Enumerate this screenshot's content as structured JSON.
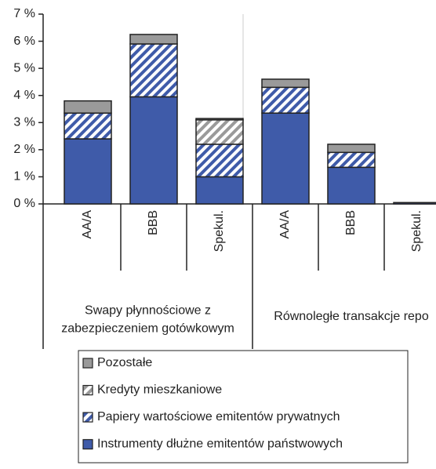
{
  "chart_data": {
    "type": "stacked_bar",
    "groups": [
      {
        "name": "Swapy płynnościowe z zabezpieczeniem gotówkowym",
        "categories": [
          "AA/A",
          "BBB",
          "Spekul."
        ]
      },
      {
        "name": "Równoległe transakcje repo",
        "categories": [
          "AA/A",
          "BBB",
          "Spekul."
        ]
      }
    ],
    "series": [
      {
        "name": "Instrumenty dłużne emitentów państwowych",
        "color": "#3f5ba9",
        "pattern": "solid",
        "values": [
          2.4,
          3.95,
          1.0,
          3.35,
          1.35,
          0.05
        ]
      },
      {
        "name": "Papiery wartościowe emitentów prywatnych",
        "color": "#3f5ba9",
        "pattern": "hatch",
        "values": [
          0.95,
          1.95,
          1.2,
          0.95,
          0.55,
          0
        ]
      },
      {
        "name": "Kredyty mieszkaniowe",
        "color": "#9a9a9a",
        "pattern": "hatch",
        "values": [
          0,
          0,
          0.9,
          0,
          0,
          0
        ]
      },
      {
        "name": "Pozostałe",
        "color": "#9a9a9a",
        "pattern": "solid",
        "values": [
          0.45,
          0.35,
          0.05,
          0.3,
          0.3,
          0
        ]
      }
    ],
    "ylim": [
      0,
      7
    ],
    "yticks": [
      {
        "value": 0,
        "label": "0 %"
      },
      {
        "value": 1,
        "label": "1 %"
      },
      {
        "value": 2,
        "label": "2 %"
      },
      {
        "value": 3,
        "label": "3 %"
      },
      {
        "value": 4,
        "label": "4 %"
      },
      {
        "value": 5,
        "label": "5 %"
      },
      {
        "value": 6,
        "label": "6 %"
      },
      {
        "value": 7,
        "label": "7 %"
      }
    ]
  }
}
